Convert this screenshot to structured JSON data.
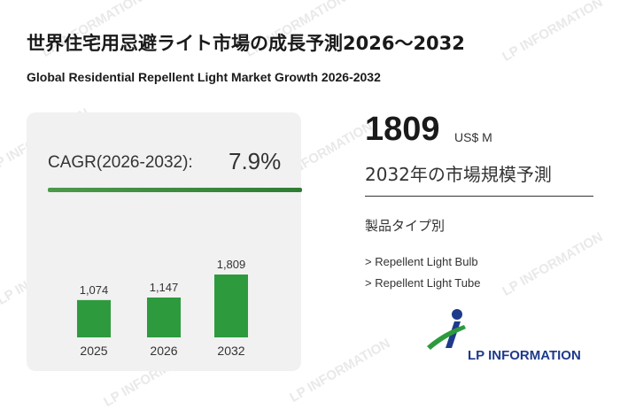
{
  "header": {
    "title_ja": "世界住宅用忌避ライト市場の成長予測2026～2032",
    "title_en": "Global Residential Repellent Light Market Growth 2026-2032"
  },
  "cagr": {
    "label": "CAGR(2026-2032):",
    "value": "7.9%"
  },
  "highlight": {
    "value": "1809",
    "unit": "US$ M",
    "caption": "2032年の市場規模予測"
  },
  "segments": {
    "title": "製品タイプ別",
    "items": [
      "> Repellent Light Bulb",
      "> Repellent Light Tube"
    ]
  },
  "brand": {
    "name": "LP INFORMATION",
    "watermark": "LP INFORMATION"
  },
  "colors": {
    "bar": "#2e9a3e",
    "accent": "#2e7d32",
    "logo_blue": "#1e3a8a"
  },
  "chart_data": {
    "type": "bar",
    "title": "",
    "categories": [
      "2025",
      "2026",
      "2032"
    ],
    "values": [
      1074,
      1147,
      1809
    ],
    "value_labels": [
      "1,074",
      "1,147",
      "1,809"
    ],
    "xlabel": "",
    "ylabel": "",
    "ylim": [
      0,
      1809
    ]
  }
}
